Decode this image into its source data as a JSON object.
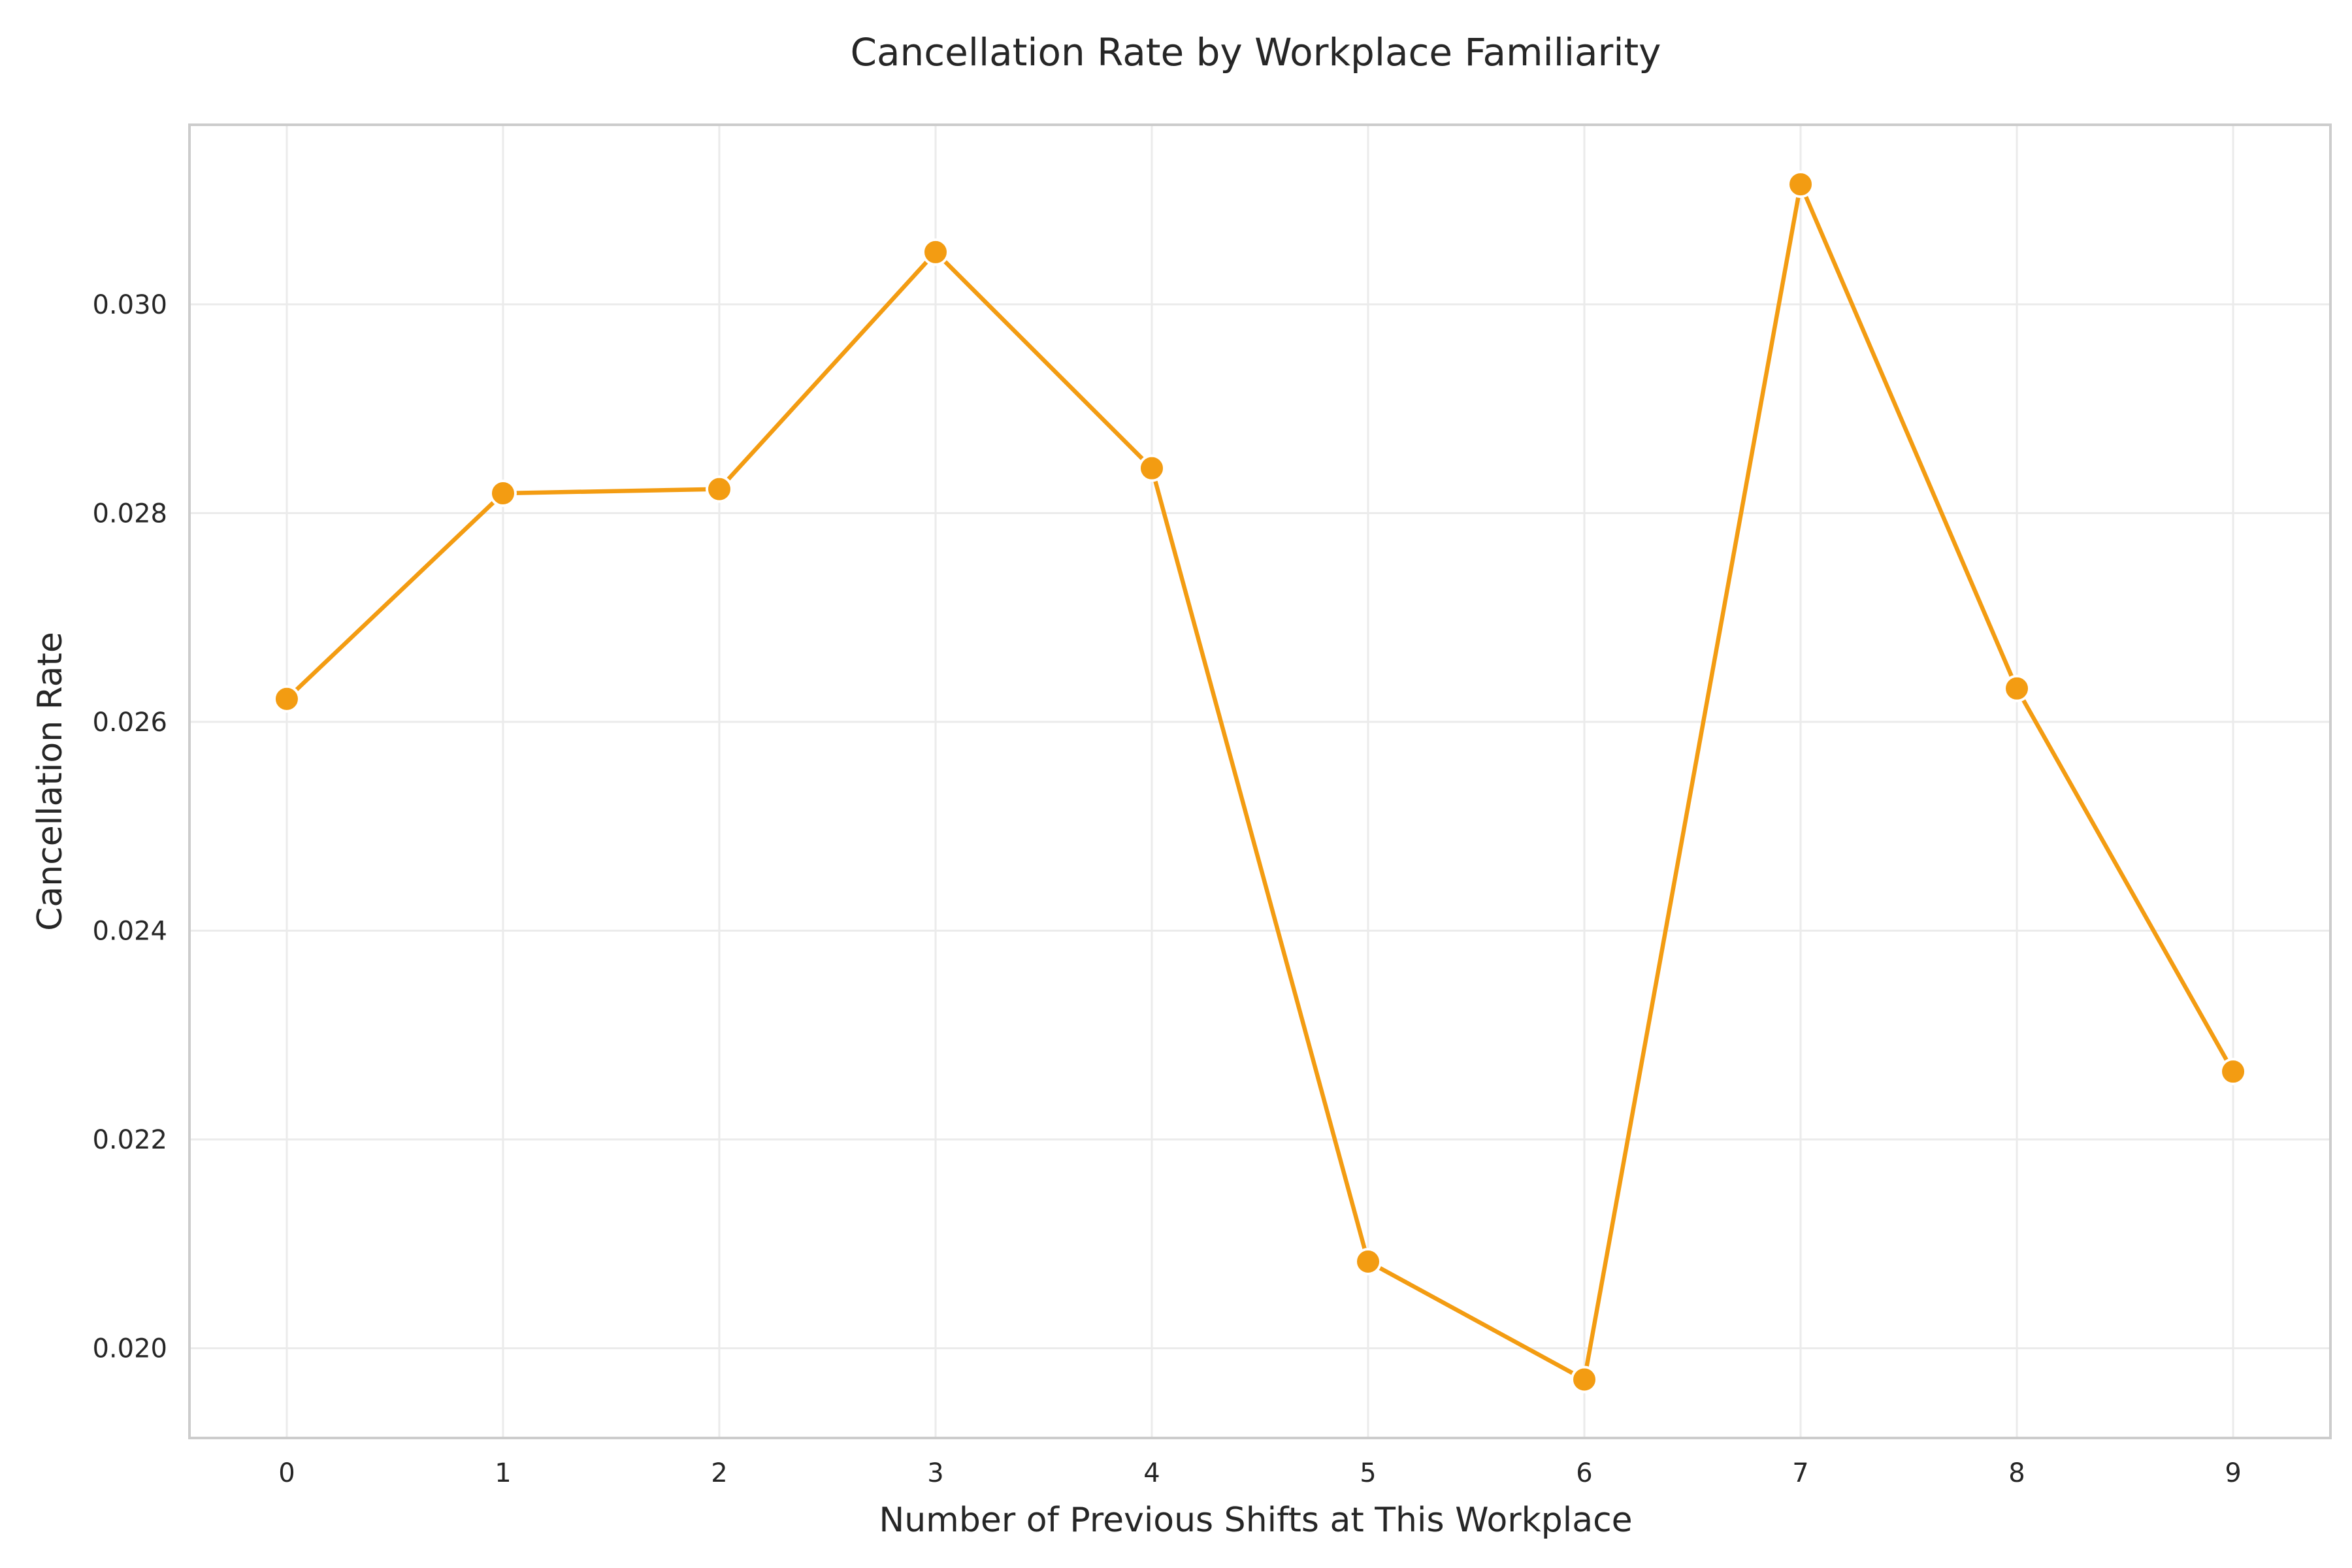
{
  "chart_data": {
    "type": "line",
    "title": "Cancellation Rate by Workplace Familiarity",
    "xlabel": "Number of Previous Shifts at This Workplace",
    "ylabel": "Cancellation Rate",
    "x": [
      0,
      1,
      2,
      3,
      4,
      5,
      6,
      7,
      8,
      9
    ],
    "x_tick_labels": [
      "0",
      "1",
      "2",
      "3",
      "4",
      "5",
      "6",
      "7",
      "8",
      "9"
    ],
    "y_ticks": [
      0.02,
      0.022,
      0.024,
      0.026,
      0.028,
      0.03
    ],
    "y_tick_labels": [
      "0.020",
      "0.022",
      "0.024",
      "0.026",
      "0.028",
      "0.030"
    ],
    "xlim": [
      -0.45,
      9.45
    ],
    "ylim": [
      0.01914,
      0.03172
    ],
    "grid": true,
    "series": [
      {
        "values": [
          0.02622,
          0.02819,
          0.02823,
          0.0305,
          0.02843,
          0.02083,
          0.0197,
          0.03115,
          0.02632,
          0.02265
        ],
        "color": "#f39c12"
      }
    ]
  }
}
